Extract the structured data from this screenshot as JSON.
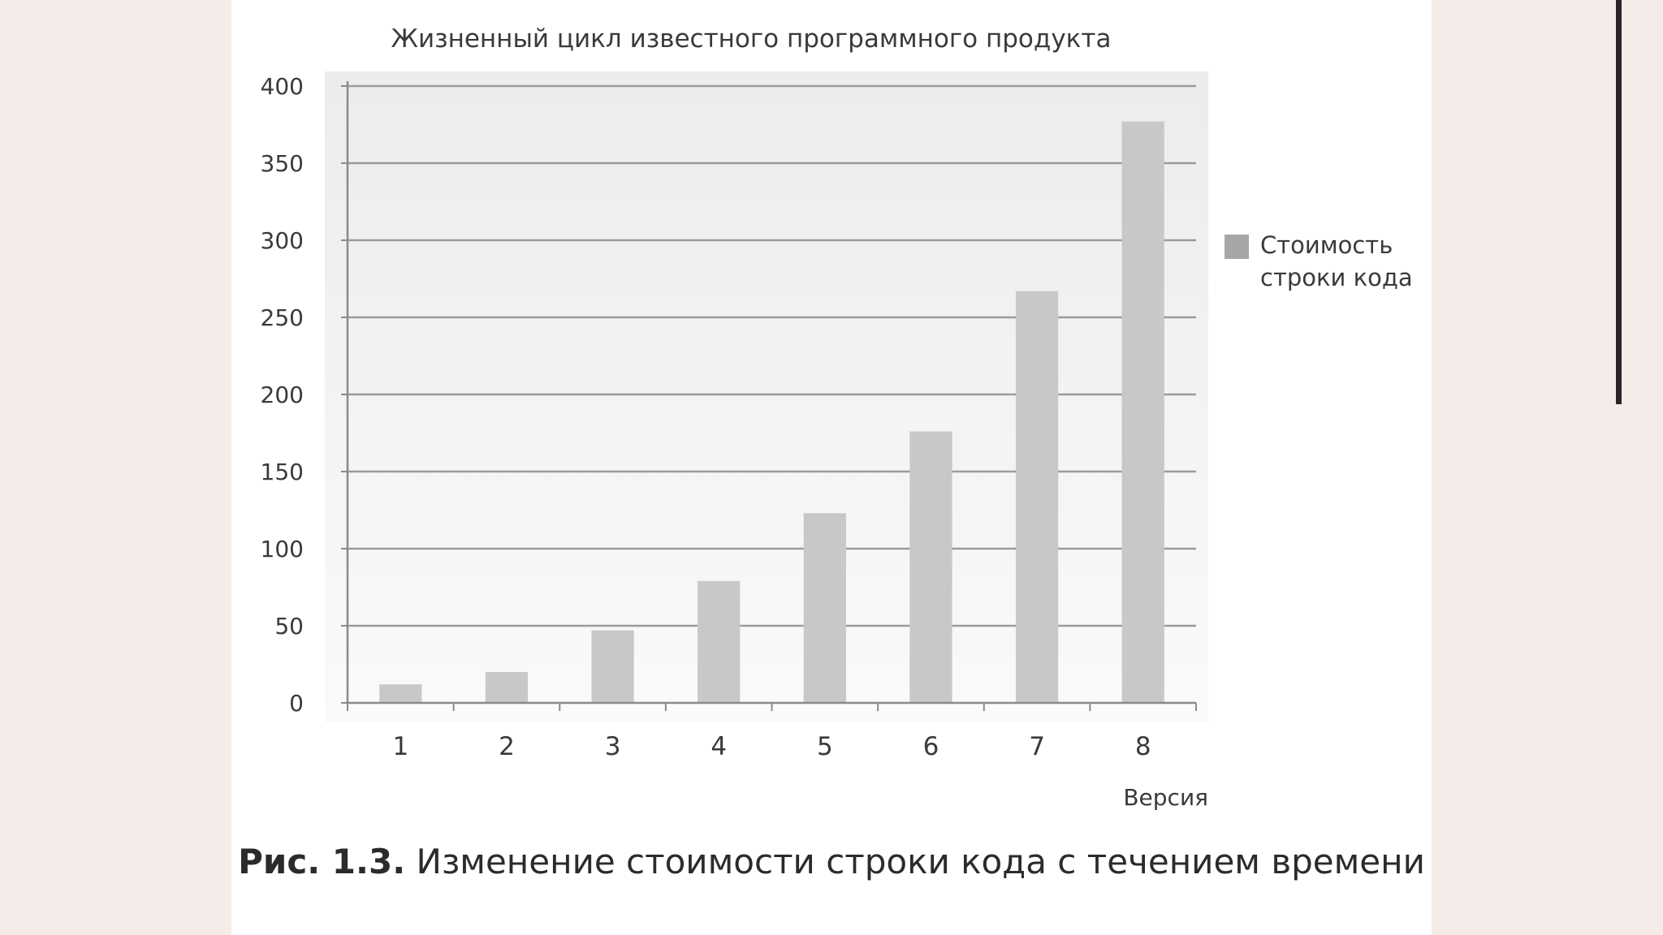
{
  "chart_data": {
    "type": "bar",
    "title": "Жизненный цикл известного программного продукта",
    "xlabel": "Версия",
    "ylabel": "",
    "categories": [
      "1",
      "2",
      "3",
      "4",
      "5",
      "6",
      "7",
      "8"
    ],
    "series": [
      {
        "name": "Стоимость строки кода",
        "values": [
          12,
          20,
          47,
          79,
          123,
          176,
          267,
          377
        ]
      }
    ],
    "ylim": [
      0,
      400
    ],
    "yticks": [
      "0",
      "50",
      "100",
      "150",
      "200",
      "250",
      "300",
      "350",
      "400"
    ],
    "legend": {
      "position": "right",
      "lines": [
        "Стоимость",
        "строки кода"
      ]
    },
    "grid": true,
    "colors": {
      "bar": "#c8c8c8",
      "legend_swatch": "#a6a6a6",
      "grid": "#9b9b9b",
      "plot_bg": "#f1f1f1"
    }
  },
  "caption": {
    "label": "Рис. 1.3.",
    "text": "Изменение стоимости строки кода с течением времени"
  },
  "colors": {
    "page_bg": "#f5ecea",
    "card_bg": "#ffffff",
    "accent_bar": "#2a2426"
  }
}
